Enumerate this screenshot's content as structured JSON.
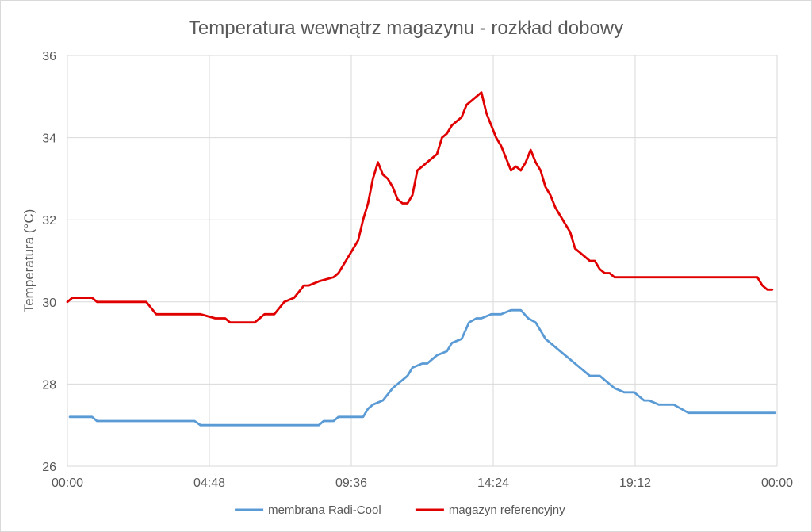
{
  "chart_data": {
    "type": "line",
    "title": "Temperatura wewnątrz magazynu - rozkład dobowy",
    "xlabel": "",
    "ylabel": "Temperatura (°C)",
    "xlim": [
      0,
      1440
    ],
    "ylim": [
      26,
      36
    ],
    "y_ticks": [
      26,
      28,
      30,
      32,
      34,
      36
    ],
    "x_ticks": [
      {
        "minute": 0,
        "label": "00:00"
      },
      {
        "minute": 288,
        "label": "04:48"
      },
      {
        "minute": 576,
        "label": "09:36"
      },
      {
        "minute": 864,
        "label": "14:24"
      },
      {
        "minute": 1152,
        "label": "19:12"
      },
      {
        "minute": 1440,
        "label": "00:00"
      }
    ],
    "grid": "on",
    "legend": "bottom",
    "series": [
      {
        "name": "membrana Radi-Cool",
        "color": "#5b9bd5",
        "x": [
          "00:05",
          "00:30",
          "00:50",
          "01:00",
          "02:00",
          "03:00",
          "04:00",
          "04:18",
          "04:30",
          "05:00",
          "06:00",
          "07:00",
          "07:30",
          "08:00",
          "08:15",
          "08:30",
          "08:40",
          "08:45",
          "08:50",
          "09:00",
          "09:10",
          "09:20",
          "09:40",
          "10:00",
          "10:10",
          "10:20",
          "10:40",
          "11:00",
          "11:10",
          "11:30",
          "11:40",
          "12:00",
          "12:10",
          "12:30",
          "12:50",
          "13:00",
          "13:20",
          "13:35",
          "13:50",
          "14:00",
          "14:20",
          "14:40",
          "15:00",
          "15:20",
          "15:35",
          "15:50",
          "16:10",
          "16:20",
          "16:40",
          "17:00",
          "17:20",
          "17:40",
          "18:00",
          "18:30",
          "18:50",
          "19:10",
          "19:20",
          "19:30",
          "19:40",
          "20:00",
          "20:20",
          "20:30",
          "21:00",
          "21:20",
          "21:30",
          "21:40",
          "22:00",
          "22:30",
          "23:00",
          "23:30",
          "23:55"
        ],
        "values": [
          27.2,
          27.2,
          27.2,
          27.1,
          27.1,
          27.1,
          27.1,
          27.1,
          27.0,
          27.0,
          27.0,
          27.0,
          27.0,
          27.0,
          27.0,
          27.0,
          27.1,
          27.1,
          27.1,
          27.1,
          27.2,
          27.2,
          27.2,
          27.2,
          27.4,
          27.5,
          27.6,
          27.9,
          28.0,
          28.2,
          28.4,
          28.5,
          28.5,
          28.7,
          28.8,
          29.0,
          29.1,
          29.5,
          29.6,
          29.6,
          29.7,
          29.7,
          29.8,
          29.8,
          29.6,
          29.5,
          29.1,
          29.0,
          28.8,
          28.6,
          28.4,
          28.2,
          28.2,
          27.9,
          27.8,
          27.8,
          27.7,
          27.6,
          27.6,
          27.5,
          27.5,
          27.5,
          27.3,
          27.3,
          27.3,
          27.3,
          27.3,
          27.3,
          27.3,
          27.3,
          27.3
        ]
      },
      {
        "name": "magazyn referencyjny",
        "color": "#e00000",
        "x": [
          "00:00",
          "00:10",
          "00:30",
          "00:50",
          "01:00",
          "01:30",
          "02:00",
          "02:20",
          "02:40",
          "03:00",
          "03:30",
          "04:00",
          "04:15",
          "04:30",
          "05:00",
          "05:20",
          "05:30",
          "06:00",
          "06:20",
          "06:30",
          "06:40",
          "07:00",
          "07:20",
          "07:40",
          "08:00",
          "08:10",
          "08:30",
          "09:00",
          "09:10",
          "09:30",
          "09:40",
          "09:50",
          "10:00",
          "10:10",
          "10:20",
          "10:30",
          "10:40",
          "10:50",
          "11:00",
          "11:10",
          "11:20",
          "11:30",
          "11:40",
          "11:50",
          "12:00",
          "12:10",
          "12:20",
          "12:30",
          "12:40",
          "12:50",
          "13:00",
          "13:10",
          "13:20",
          "13:30",
          "13:40",
          "13:50",
          "14:00",
          "14:10",
          "14:20",
          "14:30",
          "14:40",
          "14:50",
          "15:00",
          "15:10",
          "15:20",
          "15:30",
          "15:40",
          "15:50",
          "16:00",
          "16:10",
          "16:20",
          "16:30",
          "16:40",
          "16:50",
          "17:00",
          "17:10",
          "17:20",
          "17:30",
          "17:40",
          "17:50",
          "18:00",
          "18:10",
          "18:20",
          "18:30",
          "18:40",
          "18:50",
          "19:00",
          "19:10",
          "19:20",
          "19:40",
          "20:00",
          "20:20",
          "20:30",
          "20:40",
          "21:00",
          "21:20",
          "21:40",
          "22:00",
          "22:20",
          "22:40",
          "23:00",
          "23:20",
          "23:30",
          "23:40",
          "23:50"
        ],
        "values": [
          30.0,
          30.1,
          30.1,
          30.1,
          30.0,
          30.0,
          30.0,
          30.0,
          30.0,
          29.7,
          29.7,
          29.7,
          29.7,
          29.7,
          29.6,
          29.6,
          29.5,
          29.5,
          29.5,
          29.6,
          29.7,
          29.7,
          30.0,
          30.1,
          30.4,
          30.4,
          30.5,
          30.6,
          30.7,
          31.1,
          31.3,
          31.5,
          32.0,
          32.4,
          33.0,
          33.4,
          33.1,
          33.0,
          32.8,
          32.5,
          32.4,
          32.4,
          32.6,
          33.2,
          33.3,
          33.4,
          33.5,
          33.6,
          34.0,
          34.1,
          34.3,
          34.4,
          34.5,
          34.8,
          34.9,
          35.0,
          35.1,
          34.6,
          34.3,
          34.0,
          33.8,
          33.5,
          33.2,
          33.3,
          33.2,
          33.4,
          33.7,
          33.4,
          33.2,
          32.8,
          32.6,
          32.3,
          32.1,
          31.9,
          31.7,
          31.3,
          31.2,
          31.1,
          31.0,
          31.0,
          30.8,
          30.7,
          30.7,
          30.6,
          30.6,
          30.6,
          30.6,
          30.6,
          30.6,
          30.6,
          30.6,
          30.6,
          30.6,
          30.6,
          30.6,
          30.6,
          30.6,
          30.6,
          30.6,
          30.6,
          30.6,
          30.6,
          30.4,
          30.3,
          30.3
        ]
      }
    ]
  }
}
